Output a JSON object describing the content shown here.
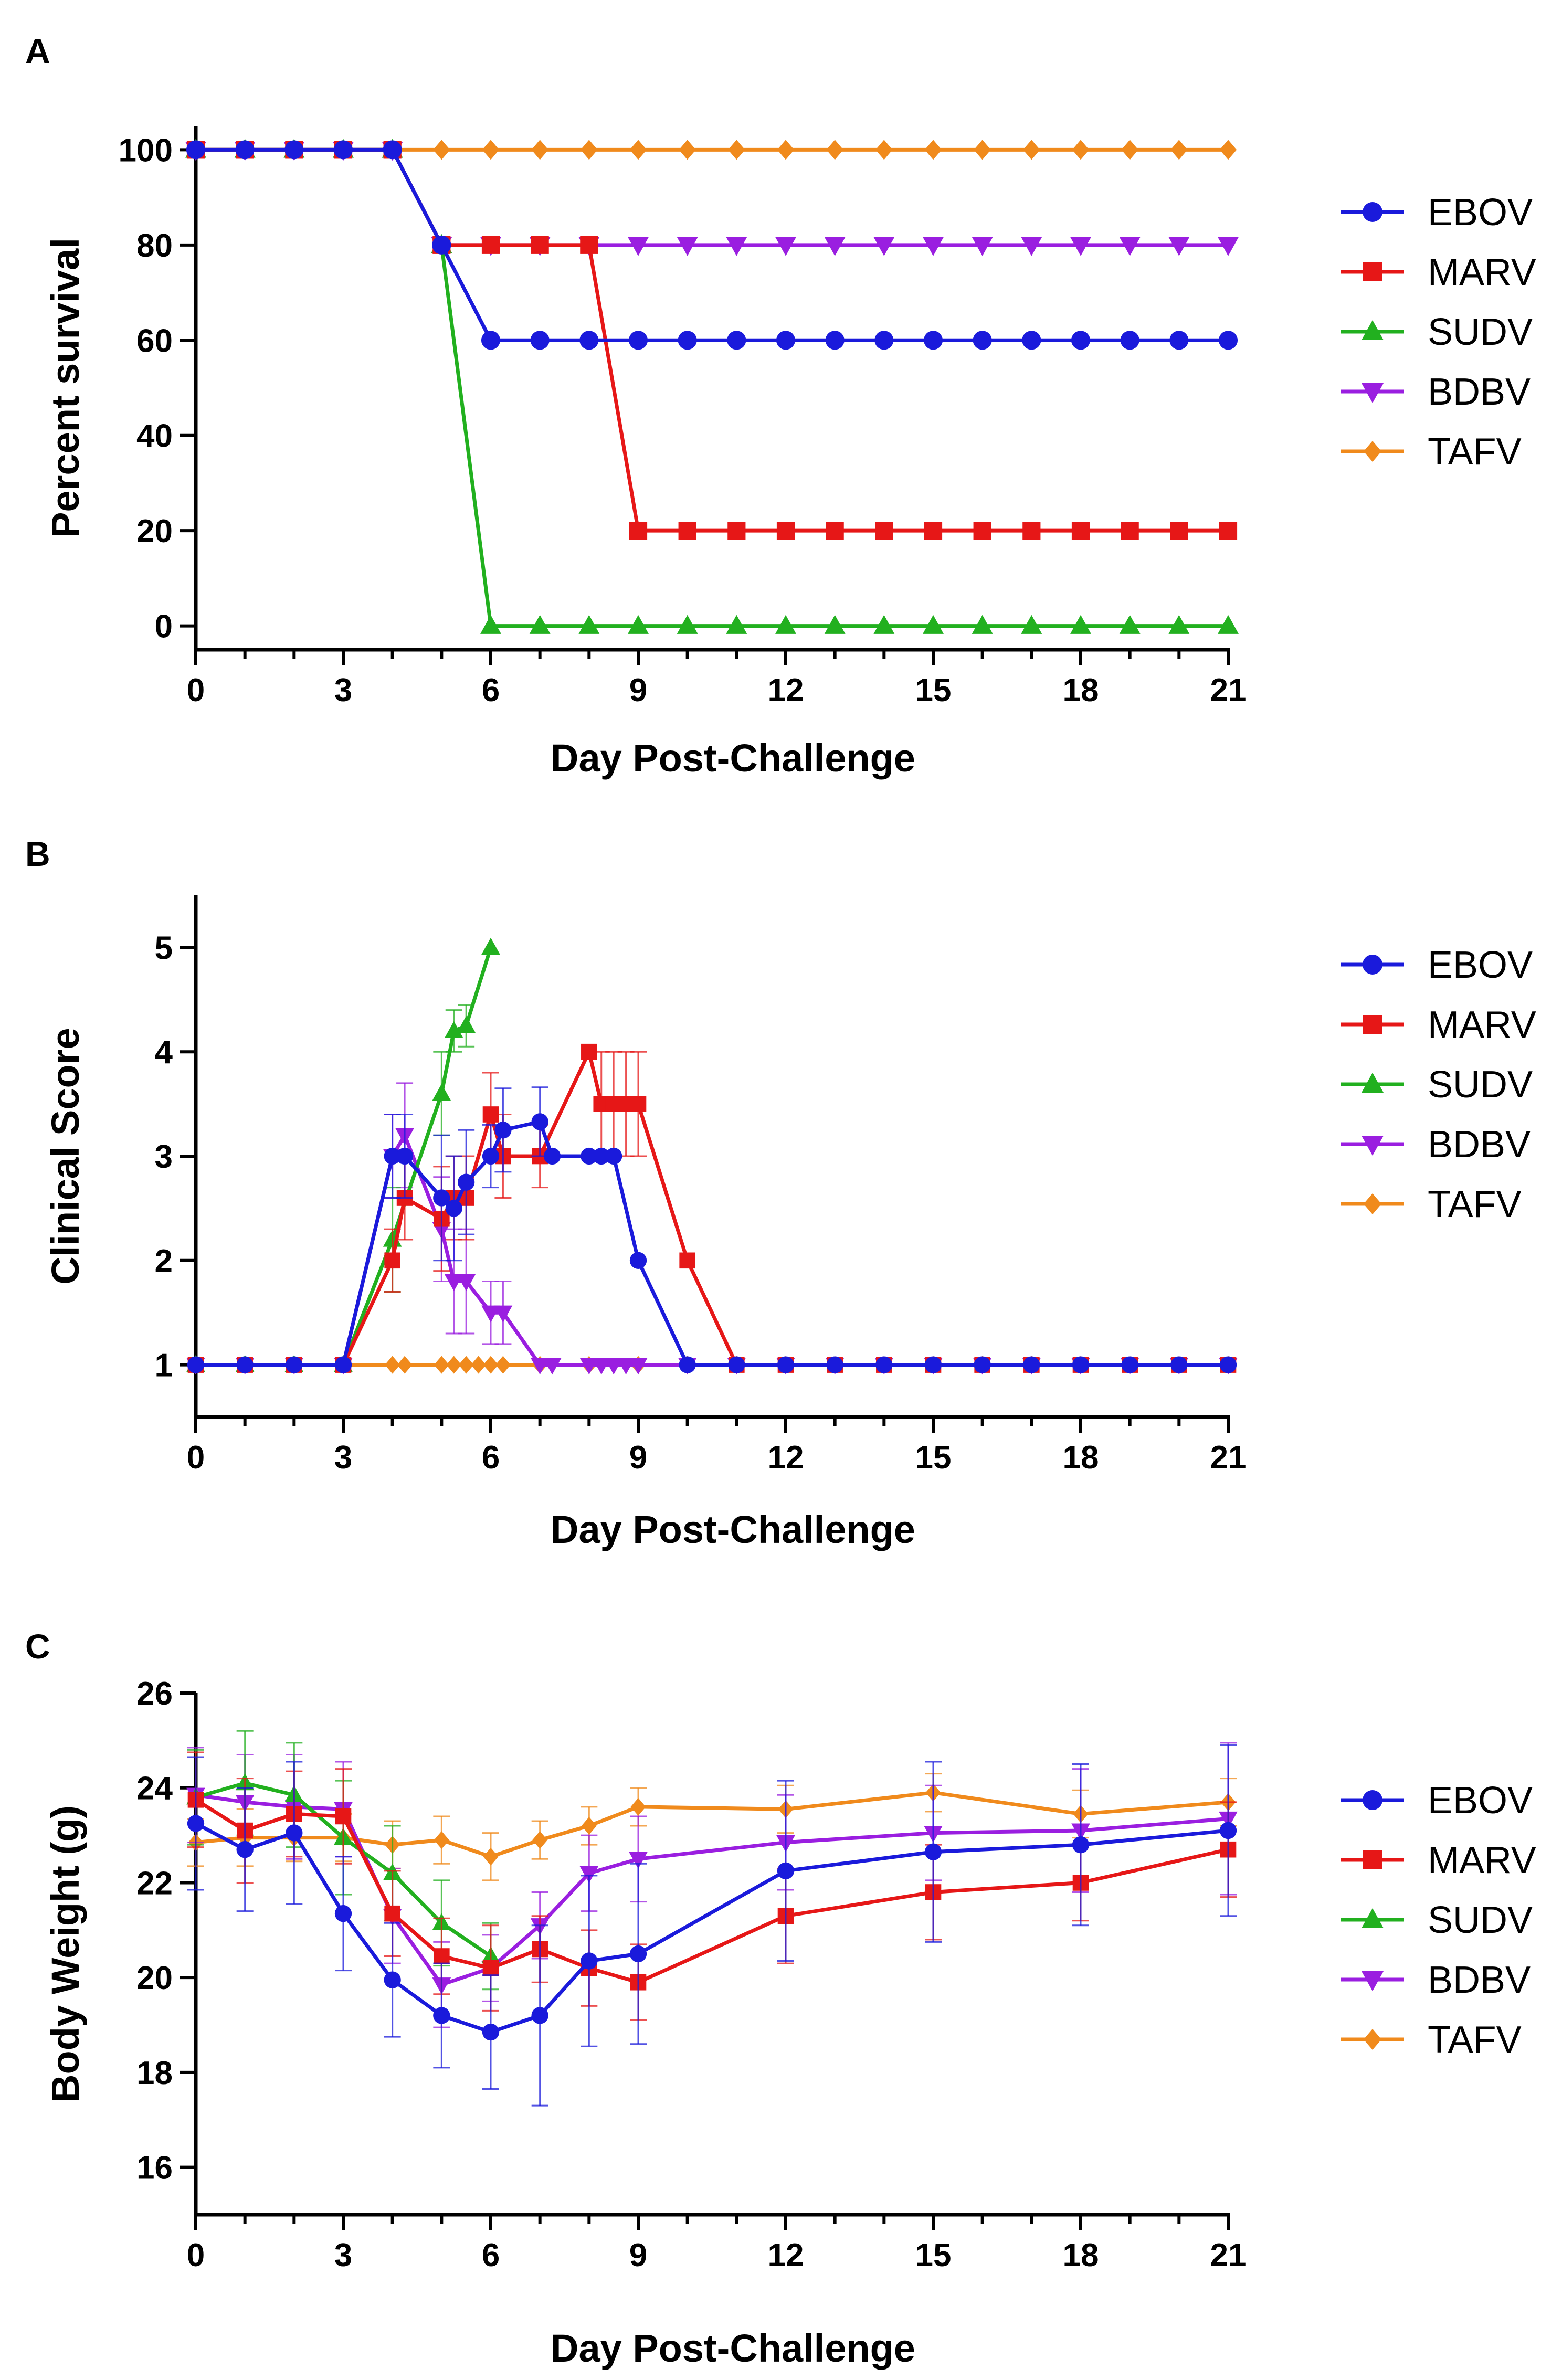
{
  "colors": {
    "EBOV": "#1a1adb",
    "MARV": "#e61717",
    "SUDV": "#22b01f",
    "BDBV": "#9a1ee0",
    "TAFV": "#f08a1c"
  },
  "chart_data": [
    {
      "panel": "A",
      "type": "line",
      "title": "",
      "xlabel": "Day Post-Challenge",
      "ylabel": "Percent survival",
      "xlim": [
        0,
        21
      ],
      "ylim": [
        -5,
        105
      ],
      "xticks": [
        0,
        3,
        6,
        9,
        12,
        15,
        18,
        21
      ],
      "yticks": [
        0,
        20,
        40,
        60,
        80,
        100
      ],
      "step": true,
      "legend": [
        "EBOV",
        "MARV",
        "SUDV",
        "BDBV",
        "TAFV"
      ],
      "series": [
        {
          "name": "EBOV",
          "marker": "circle",
          "x": [
            0,
            1,
            2,
            3,
            4,
            5,
            6,
            7,
            8,
            9,
            10,
            11,
            12,
            13,
            14,
            15,
            16,
            17,
            18,
            19,
            20,
            21
          ],
          "values": [
            100,
            100,
            100,
            100,
            100,
            80,
            60,
            60,
            60,
            60,
            60,
            60,
            60,
            60,
            60,
            60,
            60,
            60,
            60,
            60,
            60,
            60
          ]
        },
        {
          "name": "MARV",
          "marker": "square",
          "x": [
            0,
            1,
            2,
            3,
            4,
            5,
            6,
            7,
            8,
            9,
            10,
            11,
            12,
            13,
            14,
            15,
            16,
            17,
            18,
            19,
            20,
            21
          ],
          "values": [
            100,
            100,
            100,
            100,
            100,
            80,
            80,
            80,
            80,
            20,
            20,
            20,
            20,
            20,
            20,
            20,
            20,
            20,
            20,
            20,
            20,
            20
          ]
        },
        {
          "name": "SUDV",
          "marker": "triangle-up",
          "x": [
            0,
            1,
            2,
            3,
            4,
            5,
            6,
            7,
            8,
            9,
            10,
            11,
            12,
            13,
            14,
            15,
            16,
            17,
            18,
            19,
            20,
            21
          ],
          "values": [
            100,
            100,
            100,
            100,
            100,
            80,
            0,
            0,
            0,
            0,
            0,
            0,
            0,
            0,
            0,
            0,
            0,
            0,
            0,
            0,
            0,
            0
          ]
        },
        {
          "name": "BDBV",
          "marker": "triangle-down",
          "x": [
            0,
            1,
            2,
            3,
            4,
            5,
            6,
            7,
            8,
            9,
            10,
            11,
            12,
            13,
            14,
            15,
            16,
            17,
            18,
            19,
            20,
            21
          ],
          "values": [
            100,
            100,
            100,
            100,
            100,
            80,
            80,
            80,
            80,
            80,
            80,
            80,
            80,
            80,
            80,
            80,
            80,
            80,
            80,
            80,
            80,
            80
          ]
        },
        {
          "name": "TAFV",
          "marker": "diamond",
          "x": [
            0,
            1,
            2,
            3,
            4,
            5,
            6,
            7,
            8,
            9,
            10,
            11,
            12,
            13,
            14,
            15,
            16,
            17,
            18,
            19,
            20,
            21
          ],
          "values": [
            100,
            100,
            100,
            100,
            100,
            100,
            100,
            100,
            100,
            100,
            100,
            100,
            100,
            100,
            100,
            100,
            100,
            100,
            100,
            100,
            100,
            100
          ]
        }
      ]
    },
    {
      "panel": "B",
      "type": "line",
      "title": "",
      "xlabel": "Day Post-Challenge",
      "ylabel": "Clinical Score",
      "xlim": [
        0,
        21
      ],
      "ylim": [
        0.5,
        5.5
      ],
      "xticks": [
        0,
        3,
        6,
        9,
        12,
        15,
        18,
        21
      ],
      "yticks": [
        1,
        2,
        3,
        4,
        5
      ],
      "legend": [
        "EBOV",
        "MARV",
        "SUDV",
        "BDBV",
        "TAFV"
      ],
      "series": [
        {
          "name": "EBOV",
          "marker": "circle",
          "x": [
            0,
            1,
            2,
            3,
            4,
            4.25,
            5,
            5.25,
            5.5,
            6,
            6.25,
            7,
            7.25,
            8,
            8.25,
            8.5,
            9,
            10,
            11,
            12,
            13,
            14,
            15,
            16,
            17,
            18,
            19,
            20,
            21
          ],
          "values": [
            1,
            1,
            1,
            1,
            3,
            3,
            2.6,
            2.5,
            2.75,
            3,
            3.25,
            3.33,
            3,
            3,
            3,
            3,
            2,
            1,
            1,
            1,
            1,
            1,
            1,
            1,
            1,
            1,
            1,
            1,
            1
          ],
          "errors": [
            0,
            0,
            0,
            0,
            0.4,
            0.4,
            0.6,
            0.5,
            0.5,
            0.3,
            0.4,
            0.33,
            0,
            0,
            0,
            0,
            0,
            0,
            0,
            0,
            0,
            0,
            0,
            0,
            0,
            0,
            0,
            0,
            0
          ]
        },
        {
          "name": "MARV",
          "marker": "square",
          "x": [
            0,
            1,
            2,
            3,
            4,
            4.25,
            5,
            5.25,
            5.5,
            6,
            6.25,
            7,
            8,
            8.25,
            8.5,
            8.75,
            9,
            10,
            11,
            12,
            13,
            14,
            15,
            16,
            17,
            18,
            19,
            20,
            21
          ],
          "values": [
            1,
            1,
            1,
            1,
            2,
            2.6,
            2.4,
            2.6,
            2.6,
            3.4,
            3,
            3,
            4,
            3.5,
            3.5,
            3.5,
            3.5,
            2,
            1,
            1,
            1,
            1,
            1,
            1,
            1,
            1,
            1,
            1,
            1
          ],
          "errors": [
            0,
            0,
            0,
            0,
            0.3,
            0.4,
            0.5,
            0.4,
            0.4,
            0.4,
            0.4,
            0.3,
            0,
            0.5,
            0.5,
            0.5,
            0.5,
            0,
            0,
            0,
            0,
            0,
            0,
            0,
            0,
            0,
            0,
            0,
            0
          ]
        },
        {
          "name": "SUDV",
          "marker": "triangle-up",
          "x": [
            0,
            1,
            2,
            3,
            4,
            5,
            5.25,
            5.5,
            6
          ],
          "values": [
            1,
            1,
            1,
            1,
            2.2,
            3.6,
            4.2,
            4.25,
            5
          ],
          "errors": [
            0,
            0,
            0,
            0,
            0.5,
            0.4,
            0.2,
            0.2,
            0
          ]
        },
        {
          "name": "BDBV",
          "marker": "triangle-down",
          "x": [
            0,
            1,
            2,
            3,
            4,
            4.25,
            5,
            5.25,
            5.5,
            6,
            6.25,
            7,
            7.25,
            8,
            8.25,
            8.5,
            8.75,
            9,
            10,
            11,
            12,
            13,
            14,
            15,
            16,
            17,
            18,
            19,
            20,
            21
          ],
          "values": [
            1,
            1,
            1,
            1,
            3,
            3.2,
            2.3,
            1.8,
            1.8,
            1.5,
            1.5,
            1,
            1,
            1,
            1,
            1,
            1,
            1,
            1,
            1,
            1,
            1,
            1,
            1,
            1,
            1,
            1,
            1,
            1,
            1
          ],
          "errors": [
            0,
            0,
            0,
            0,
            0.4,
            0.5,
            0.5,
            0.5,
            0.5,
            0.3,
            0.3,
            0,
            0,
            0,
            0,
            0,
            0,
            0,
            0,
            0,
            0,
            0,
            0,
            0,
            0,
            0,
            0,
            0,
            0,
            0
          ]
        },
        {
          "name": "TAFV",
          "marker": "diamond",
          "x": [
            0,
            1,
            2,
            3,
            4,
            4.25,
            5,
            5.25,
            5.5,
            5.75,
            6,
            6.25,
            7,
            8,
            9,
            10,
            11,
            12,
            13,
            14,
            15,
            16,
            17,
            18,
            19,
            20,
            21
          ],
          "values": [
            1,
            1,
            1,
            1,
            1,
            1,
            1,
            1,
            1,
            1,
            1,
            1,
            1,
            1,
            1,
            1,
            1,
            1,
            1,
            1,
            1,
            1,
            1,
            1,
            1,
            1,
            1
          ],
          "errors": [
            0,
            0,
            0,
            0,
            0,
            0,
            0,
            0,
            0,
            0,
            0,
            0,
            0,
            0,
            0,
            0,
            0,
            0,
            0,
            0,
            0,
            0,
            0,
            0,
            0,
            0,
            0
          ]
        }
      ]
    },
    {
      "panel": "C",
      "type": "line",
      "title": "",
      "xlabel": "Day Post-Challenge",
      "ylabel": "Body Weight (g)",
      "xlim": [
        0,
        21
      ],
      "ylim": [
        15,
        26
      ],
      "xticks": [
        0,
        3,
        6,
        9,
        12,
        15,
        18,
        21
      ],
      "yticks": [
        16,
        18,
        20,
        22,
        24,
        26
      ],
      "legend": [
        "EBOV",
        "MARV",
        "SUDV",
        "BDBV",
        "TAFV"
      ],
      "series": [
        {
          "name": "EBOV",
          "marker": "circle",
          "x": [
            0,
            1,
            2,
            3,
            4,
            5,
            6,
            7,
            8,
            9,
            12,
            15,
            18,
            21
          ],
          "values": [
            23.25,
            22.7,
            23.05,
            21.35,
            19.95,
            19.2,
            18.85,
            19.2,
            20.35,
            20.5,
            22.25,
            22.65,
            22.8,
            23.1
          ],
          "errors": [
            1.4,
            1.3,
            1.5,
            1.2,
            1.2,
            1.1,
            1.2,
            1.9,
            1.8,
            1.9,
            1.9,
            1.9,
            1.7,
            1.8
          ]
        },
        {
          "name": "MARV",
          "marker": "square",
          "x": [
            0,
            1,
            2,
            3,
            4,
            5,
            6,
            7,
            8,
            9,
            12,
            15,
            18,
            21
          ],
          "values": [
            23.75,
            23.1,
            23.45,
            23.4,
            21.35,
            20.45,
            20.2,
            20.6,
            20.2,
            19.9,
            21.3,
            21.8,
            22.0,
            22.7
          ],
          "errors": [
            1.0,
            1.1,
            0.9,
            1.0,
            0.9,
            0.8,
            0.9,
            0.7,
            0.8,
            0.8,
            1.0,
            1.0,
            0.8,
            1.0
          ]
        },
        {
          "name": "SUDV",
          "marker": "triangle-up",
          "x": [
            0,
            1,
            2,
            3,
            4,
            5,
            6
          ],
          "values": [
            23.8,
            24.1,
            23.85,
            22.95,
            22.2,
            21.15,
            20.45
          ],
          "errors": [
            1.0,
            1.1,
            1.1,
            1.2,
            1.0,
            0.9,
            0.7
          ]
        },
        {
          "name": "BDBV",
          "marker": "triangle-down",
          "x": [
            0,
            1,
            2,
            3,
            4,
            5,
            6,
            7,
            8,
            9,
            12,
            15,
            18,
            21
          ],
          "values": [
            23.85,
            23.7,
            23.6,
            23.55,
            21.3,
            19.85,
            20.2,
            21.1,
            22.2,
            22.5,
            22.85,
            23.05,
            23.1,
            23.35
          ],
          "errors": [
            1.0,
            1.0,
            1.1,
            1.0,
            1.0,
            0.9,
            0.7,
            0.7,
            0.8,
            0.9,
            1.0,
            1.0,
            1.3,
            1.6
          ]
        },
        {
          "name": "TAFV",
          "marker": "diamond",
          "x": [
            0,
            1,
            2,
            3,
            4,
            5,
            6,
            7,
            8,
            9,
            12,
            15,
            18,
            21
          ],
          "values": [
            22.85,
            22.95,
            22.95,
            22.95,
            22.8,
            22.9,
            22.55,
            22.9,
            23.2,
            23.6,
            23.55,
            23.9,
            23.45,
            23.7
          ],
          "errors": [
            0.5,
            0.6,
            0.5,
            0.5,
            0.5,
            0.5,
            0.5,
            0.4,
            0.4,
            0.4,
            0.5,
            0.4,
            0.5,
            0.5
          ]
        }
      ]
    }
  ]
}
